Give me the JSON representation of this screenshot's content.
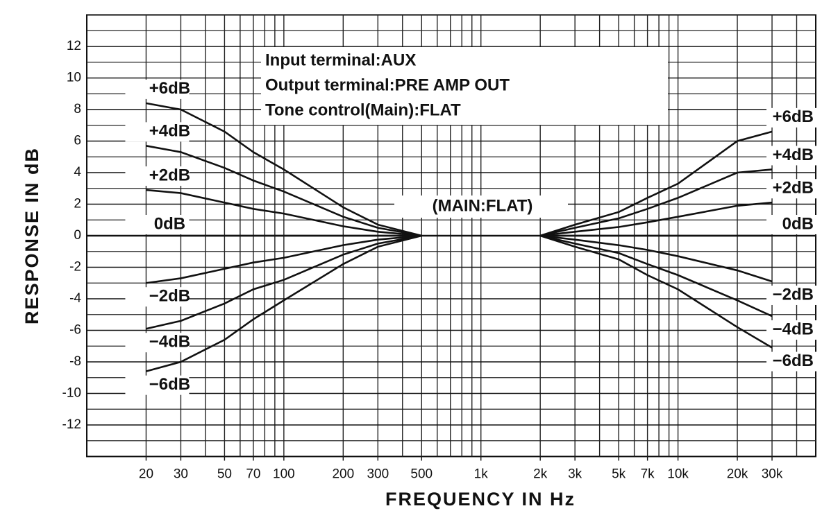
{
  "chart_data": {
    "type": "line",
    "xlabel": "FREQUENCY IN Hz",
    "ylabel": "RESPONSE IN dB",
    "annotations": [
      "Input terminal:AUX",
      "Output terminal:PRE AMP OUT",
      "Tone control(Main):FLAT",
      "(MAIN:FLAT)"
    ],
    "xscale": "log",
    "xlim": [
      10,
      50000
    ],
    "ylim": [
      -14,
      14
    ],
    "xticks": [
      20,
      30,
      50,
      70,
      100,
      200,
      300,
      500,
      {
        "value": 1000,
        "label": "1k"
      },
      {
        "value": 2000,
        "label": "2k"
      },
      {
        "value": 3000,
        "label": "3k"
      },
      {
        "value": 5000,
        "label": "5k"
      },
      {
        "value": 7000,
        "label": "7k"
      },
      {
        "value": 10000,
        "label": "10k"
      },
      {
        "value": 20000,
        "label": "20k"
      },
      {
        "value": 30000,
        "label": "30k"
      }
    ],
    "xgrid": [
      20,
      30,
      40,
      50,
      60,
      70,
      80,
      90,
      100,
      200,
      300,
      400,
      500,
      600,
      700,
      800,
      900,
      1000,
      2000,
      3000,
      4000,
      5000,
      6000,
      7000,
      8000,
      9000,
      10000,
      20000,
      30000,
      40000
    ],
    "yticks": [
      -12,
      -10,
      -8,
      -6,
      -4,
      -2,
      0,
      2,
      4,
      6,
      8,
      10,
      12
    ],
    "ygrid": [
      -13,
      -11,
      -9,
      -7,
      -5,
      -3,
      -1,
      1,
      3,
      5,
      7,
      9,
      11,
      13
    ],
    "grid": true,
    "color": "#111111",
    "series": [
      {
        "name": "+6dB",
        "side": "bass",
        "x": [
          20,
          30,
          50,
          70,
          100,
          200,
          300,
          500
        ],
        "values": [
          8.4,
          8.0,
          6.6,
          5.3,
          4.2,
          1.8,
          0.7,
          0
        ]
      },
      {
        "name": "+4dB",
        "side": "bass",
        "x": [
          20,
          30,
          50,
          70,
          100,
          200,
          300,
          500
        ],
        "values": [
          5.7,
          5.3,
          4.3,
          3.5,
          2.8,
          1.2,
          0.5,
          0
        ]
      },
      {
        "name": "+2dB",
        "side": "bass",
        "x": [
          20,
          30,
          50,
          70,
          100,
          200,
          300,
          500
        ],
        "values": [
          2.9,
          2.7,
          2.1,
          1.7,
          1.4,
          0.6,
          0.25,
          0
        ]
      },
      {
        "name": "0dB",
        "side": "bass",
        "x": [
          20,
          30,
          50,
          70,
          100,
          200,
          300,
          500
        ],
        "values": [
          0,
          0,
          0,
          0,
          0,
          0,
          0,
          0
        ]
      },
      {
        "name": "−2dB",
        "side": "bass",
        "x": [
          20,
          30,
          50,
          70,
          100,
          200,
          300,
          500
        ],
        "values": [
          -3.0,
          -2.7,
          -2.1,
          -1.7,
          -1.4,
          -0.6,
          -0.25,
          0
        ]
      },
      {
        "name": "−4dB",
        "side": "bass",
        "x": [
          20,
          30,
          50,
          70,
          100,
          200,
          300,
          500
        ],
        "values": [
          -5.9,
          -5.4,
          -4.3,
          -3.4,
          -2.8,
          -1.2,
          -0.5,
          0
        ]
      },
      {
        "name": "−6dB",
        "side": "bass",
        "x": [
          20,
          30,
          50,
          70,
          100,
          200,
          300,
          500
        ],
        "values": [
          -8.6,
          -8.0,
          -6.6,
          -5.3,
          -4.1,
          -1.8,
          -0.7,
          0
        ]
      },
      {
        "name": "+6dB",
        "side": "treble",
        "x": [
          2000,
          3000,
          5000,
          7000,
          10000,
          20000,
          30000
        ],
        "values": [
          0,
          0.7,
          1.5,
          2.4,
          3.3,
          6.0,
          6.6
        ]
      },
      {
        "name": "+4dB",
        "side": "treble",
        "x": [
          2000,
          3000,
          5000,
          7000,
          10000,
          20000,
          30000
        ],
        "values": [
          0,
          0.5,
          1.1,
          1.7,
          2.4,
          4.0,
          4.2
        ]
      },
      {
        "name": "+2dB",
        "side": "treble",
        "x": [
          2000,
          3000,
          5000,
          7000,
          10000,
          20000,
          30000
        ],
        "values": [
          0,
          0.25,
          0.55,
          0.85,
          1.2,
          1.9,
          2.1
        ]
      },
      {
        "name": "0dB",
        "side": "treble",
        "x": [
          2000,
          3000,
          5000,
          7000,
          10000,
          20000,
          30000
        ],
        "values": [
          0,
          0,
          0,
          0,
          0,
          0,
          0
        ]
      },
      {
        "name": "−2dB",
        "side": "treble",
        "x": [
          2000,
          3000,
          5000,
          7000,
          10000,
          20000,
          30000
        ],
        "values": [
          0,
          -0.25,
          -0.6,
          -0.9,
          -1.3,
          -2.2,
          -2.9
        ]
      },
      {
        "name": "−4dB",
        "side": "treble",
        "x": [
          2000,
          3000,
          5000,
          7000,
          10000,
          20000,
          30000
        ],
        "values": [
          0,
          -0.5,
          -1.1,
          -1.8,
          -2.5,
          -4.1,
          -5.1
        ]
      },
      {
        "name": "−6dB",
        "side": "treble",
        "x": [
          2000,
          3000,
          5000,
          7000,
          10000,
          20000,
          30000
        ],
        "values": [
          0,
          -0.7,
          -1.5,
          -2.5,
          -3.4,
          -5.8,
          -7.1
        ]
      }
    ]
  }
}
